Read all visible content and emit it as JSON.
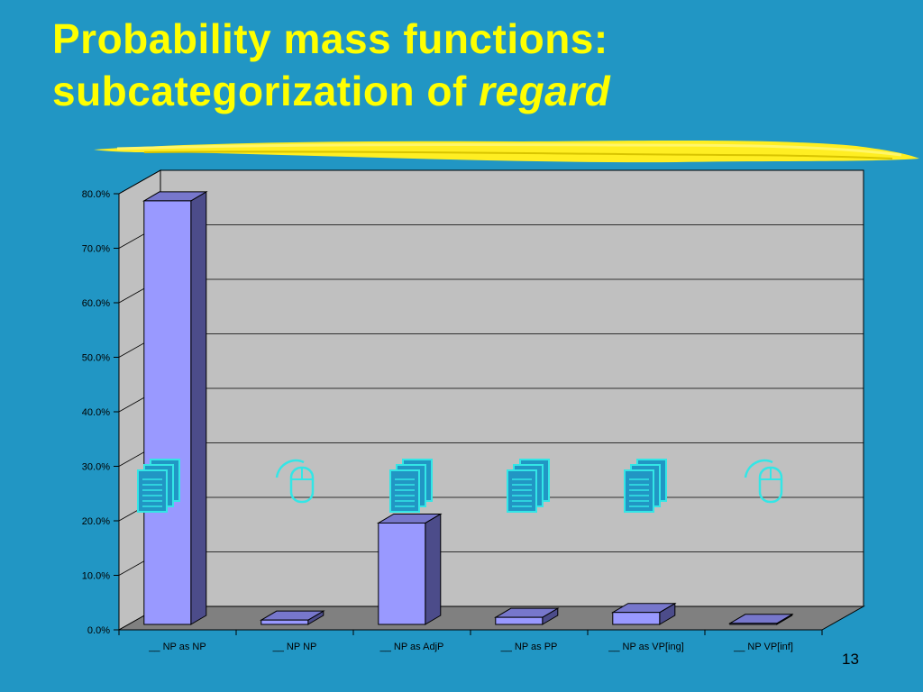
{
  "slide": {
    "title_line1": "Probability mass functions:",
    "title_line2_prefix": "subcategorization of ",
    "title_line2_emphasis": "regard",
    "page_number": "13"
  },
  "colors": {
    "background": "#2196c4",
    "title": "#ffff00",
    "plot_wall": "#c0c0c0",
    "plot_floor": "#808080",
    "bar_front": "#9999ff",
    "bar_side": "#4c4c8a",
    "bar_top": "#7777cc",
    "icon_outline": "#33e6e6"
  },
  "chart_data": {
    "type": "bar",
    "categories": [
      "__ NP as NP",
      "__ NP NP",
      "__ NP as AdjP",
      "__ NP as PP",
      "__ NP as VP[ing]",
      "__ NP VP[inf]"
    ],
    "values": [
      0.777,
      0.008,
      0.186,
      0.013,
      0.022,
      0.002
    ],
    "yticks": [
      "0.0%",
      "10.0%",
      "20.0%",
      "30.0%",
      "40.0%",
      "50.0%",
      "60.0%",
      "70.0%",
      "80.0%"
    ],
    "ylim": [
      0,
      0.8
    ],
    "title": "",
    "xlabel": "",
    "ylabel": "",
    "grid": true,
    "legend": "none",
    "icons": [
      "document-stack-icon",
      "mouse-icon",
      "document-stack-icon",
      "document-stack-icon",
      "document-stack-icon",
      "mouse-icon"
    ]
  }
}
